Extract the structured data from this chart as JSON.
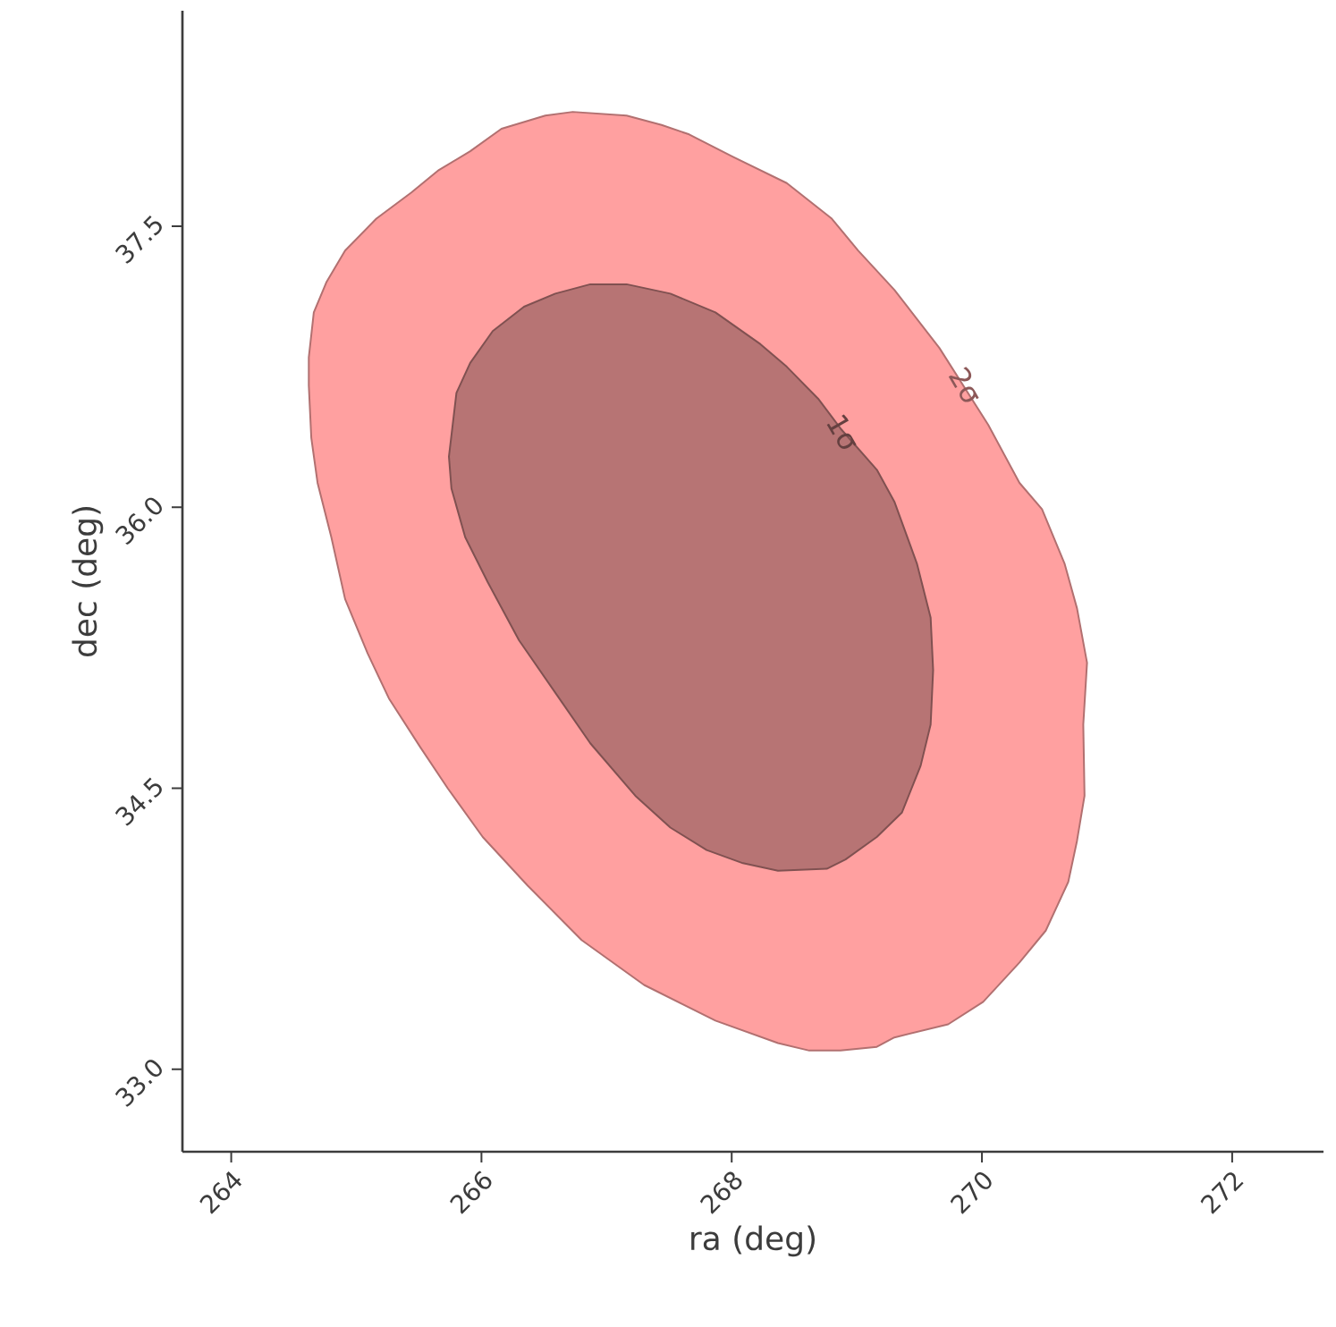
{
  "chart_data": {
    "type": "area",
    "xlabel": "ra (deg)",
    "ylabel": "dec (deg)",
    "xlim": [
      263.61,
      272.73
    ],
    "ylim": [
      32.56,
      38.65
    ],
    "xticks": [
      264,
      266,
      268,
      270,
      272
    ],
    "yticks": [
      {
        "value": 33.0,
        "label": "33.0"
      },
      {
        "value": 34.5,
        "label": "34.5"
      },
      {
        "value": 36.0,
        "label": "36.0"
      },
      {
        "value": 37.5,
        "label": "37.5"
      }
    ],
    "grid": false,
    "series": [
      {
        "color": "#ffa0a0",
        "x": [
          264.62,
          264.66,
          264.76,
          264.91,
          265.16,
          265.44,
          265.66,
          265.91,
          266.16,
          266.51,
          266.73,
          267.16,
          267.44,
          267.66,
          268.01,
          268.44,
          268.8,
          269.01,
          269.3,
          269.66,
          270.05,
          270.3,
          270.48,
          270.66,
          270.76,
          270.84,
          270.81,
          270.82,
          270.76,
          270.69,
          270.51,
          270.3,
          270.01,
          269.73,
          269.3,
          269.16,
          268.87,
          268.62,
          268.37,
          267.87,
          267.3,
          266.8,
          266.37,
          266.01,
          265.73,
          265.51,
          265.26,
          265.09,
          264.91,
          264.8,
          264.69,
          264.64,
          264.62
        ],
        "values": [
          36.8,
          37.04,
          37.2,
          37.37,
          37.54,
          37.68,
          37.8,
          37.9,
          38.02,
          38.09,
          38.11,
          38.09,
          38.04,
          37.99,
          37.87,
          37.73,
          37.54,
          37.37,
          37.16,
          36.85,
          36.44,
          36.13,
          35.99,
          35.7,
          35.46,
          35.17,
          34.84,
          34.46,
          34.22,
          34.0,
          33.74,
          33.57,
          33.36,
          33.24,
          33.17,
          33.12,
          33.1,
          33.1,
          33.14,
          33.26,
          33.45,
          33.69,
          33.98,
          34.24,
          34.5,
          34.72,
          34.98,
          35.22,
          35.51,
          35.84,
          36.13,
          36.37,
          36.65
        ]
      },
      {
        "color": "#b77474",
        "x": [
          265.74,
          265.8,
          265.91,
          266.09,
          266.34,
          266.59,
          266.87,
          267.16,
          267.51,
          267.87,
          268.23,
          268.44,
          268.69,
          268.87,
          269.16,
          269.3,
          269.48,
          269.59,
          269.61,
          269.59,
          269.51,
          269.36,
          269.16,
          268.91,
          268.76,
          268.37,
          268.09,
          267.8,
          267.51,
          267.23,
          266.87,
          266.59,
          266.3,
          266.05,
          265.87,
          265.76
        ],
        "values": [
          36.27,
          36.61,
          36.77,
          36.94,
          37.07,
          37.14,
          37.19,
          37.19,
          37.14,
          37.04,
          36.87,
          36.75,
          36.58,
          36.42,
          36.2,
          36.03,
          35.7,
          35.41,
          35.13,
          34.84,
          34.62,
          34.37,
          34.24,
          34.12,
          34.07,
          34.06,
          34.1,
          34.17,
          34.29,
          34.46,
          34.74,
          35.01,
          35.29,
          35.6,
          35.84,
          36.1
        ]
      }
    ],
    "annotations": [
      {
        "text": "2σ",
        "x": 269.87,
        "y": 36.65
      },
      {
        "text": "1σ",
        "x": 268.89,
        "y": 36.4
      }
    ]
  }
}
